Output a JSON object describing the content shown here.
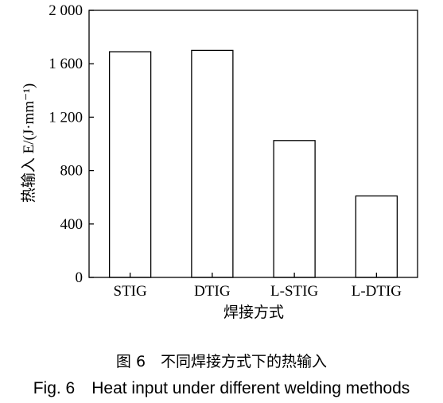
{
  "chart_data": {
    "type": "bar",
    "categories": [
      "STIG",
      "DTIG",
      "L-STIG",
      "L-DTIG"
    ],
    "values": [
      1690,
      1700,
      1025,
      610
    ],
    "ylim": [
      0,
      2000
    ],
    "yticks": [
      0,
      400,
      800,
      1200,
      1600,
      2000
    ],
    "ytick_labels": [
      "0",
      "400",
      "800",
      "1 200",
      "1 600",
      "2 000"
    ],
    "xlabel": "焊接方式",
    "ylabel": "热输入 E/(J·mm⁻¹)",
    "grid": false,
    "legend": "none",
    "bar_fill": "#ffffff",
    "bar_stroke": "#000000"
  },
  "caption": {
    "zh": "图 6　不同焊接方式下的热输入",
    "en": "Fig. 6　Heat input under different welding methods"
  }
}
